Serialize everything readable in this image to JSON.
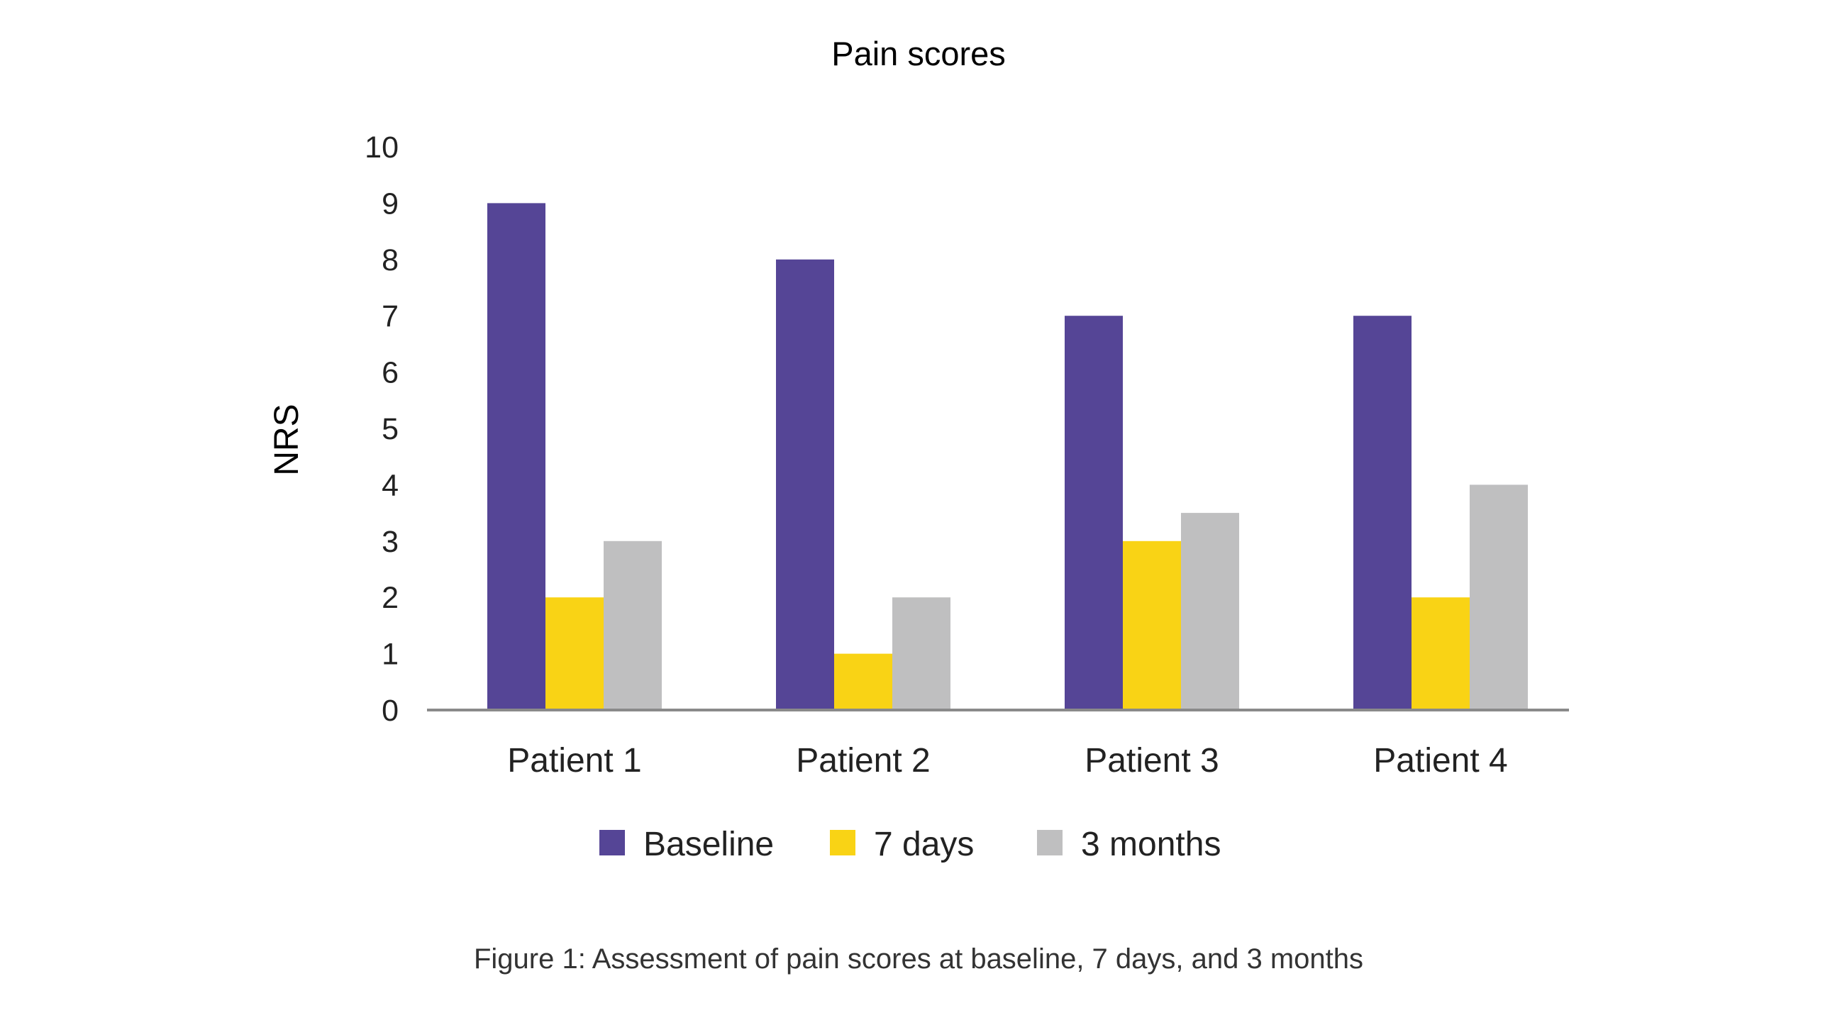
{
  "chart_data": {
    "type": "bar",
    "title": "Pain scores",
    "ylabel": "NRS",
    "xlabel": "",
    "ylim": [
      0,
      10
    ],
    "yticks": [
      "0",
      "1",
      "2",
      "3",
      "4",
      "5",
      "6",
      "7",
      "8",
      "9",
      "10"
    ],
    "categories": [
      "Patient 1",
      "Patient 2",
      "Patient 3",
      "Patient 4"
    ],
    "series": [
      {
        "name": "Baseline",
        "color": "#554596",
        "values": [
          9,
          8,
          7,
          7
        ]
      },
      {
        "name": "7 days",
        "color": "#f9d315",
        "values": [
          2,
          1,
          3,
          2
        ]
      },
      {
        "name": "3 months",
        "color": "#bfbfc0",
        "values": [
          3,
          2,
          3.5,
          4
        ]
      }
    ],
    "grid": false,
    "legend": "bottom",
    "caption": "Figure 1: Assessment of pain scores at baseline, 7 days, and 3 months"
  }
}
